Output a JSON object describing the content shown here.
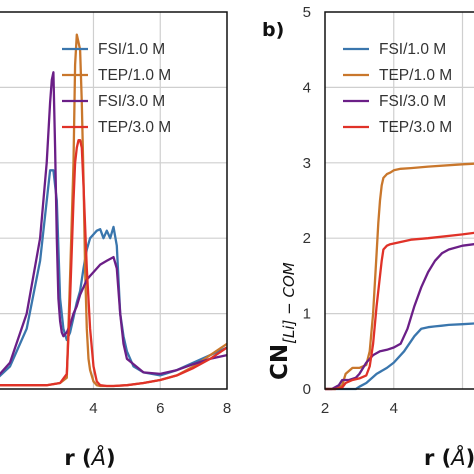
{
  "chart_data": [
    {
      "type": "line",
      "panel": "a",
      "title": "",
      "xlabel": "r",
      "xlabel_unit": "Å",
      "ylabel": "",
      "xlim": [
        0.9,
        8
      ],
      "ylim": [
        0,
        5.0
      ],
      "xticks": [
        4,
        6,
        8
      ],
      "yticks": [],
      "grid": true,
      "legend_position": "top-right",
      "series": [
        {
          "name": "FSI/1.0 M",
          "color": "#3a76ad",
          "x": [
            0.9,
            1.5,
            2.0,
            2.4,
            2.7,
            2.8,
            2.9,
            3.0,
            3.1,
            3.2,
            3.3,
            3.4,
            3.5,
            3.6,
            3.7,
            3.8,
            3.9,
            4.0,
            4.1,
            4.2,
            4.3,
            4.4,
            4.5,
            4.6,
            4.7,
            4.8,
            4.9,
            5.0,
            5.2,
            5.5,
            6.0,
            6.5,
            7.0,
            7.5,
            8.0
          ],
          "y": [
            0.05,
            0.3,
            0.8,
            1.7,
            2.9,
            2.9,
            2.5,
            1.2,
            0.8,
            0.65,
            0.75,
            0.95,
            1.15,
            1.3,
            1.6,
            1.85,
            2.0,
            2.05,
            2.1,
            2.12,
            2.0,
            2.1,
            2.0,
            2.15,
            1.9,
            1.0,
            0.7,
            0.5,
            0.3,
            0.22,
            0.18,
            0.25,
            0.35,
            0.45,
            0.55
          ]
        },
        {
          "name": "TEP/1.0 M",
          "color": "#c9772c",
          "x": [
            0.9,
            1.5,
            2.0,
            2.6,
            3.0,
            3.2,
            3.3,
            3.4,
            3.45,
            3.5,
            3.55,
            3.6,
            3.65,
            3.7,
            3.75,
            3.8,
            3.85,
            3.9,
            4.0,
            4.1,
            4.2,
            4.4,
            4.6,
            5.0,
            5.5,
            6.0,
            6.5,
            7.0,
            7.5,
            8.0
          ],
          "y": [
            0.05,
            0.05,
            0.05,
            0.05,
            0.08,
            0.15,
            1.5,
            3.0,
            4.3,
            4.7,
            4.6,
            4.5,
            3.8,
            2.8,
            1.6,
            0.8,
            0.4,
            0.25,
            0.1,
            0.05,
            0.04,
            0.04,
            0.04,
            0.05,
            0.08,
            0.12,
            0.18,
            0.3,
            0.45,
            0.6
          ]
        },
        {
          "name": "FSI/3.0 M",
          "color": "#6b1f87",
          "x": [
            0.9,
            1.5,
            2.0,
            2.4,
            2.6,
            2.7,
            2.75,
            2.8,
            2.85,
            2.9,
            2.95,
            3.0,
            3.05,
            3.1,
            3.2,
            3.3,
            3.4,
            3.5,
            3.6,
            3.7,
            3.8,
            3.9,
            4.0,
            4.2,
            4.4,
            4.6,
            4.7,
            4.8,
            4.9,
            5.0,
            5.5,
            6.0,
            6.5,
            7.0,
            7.5,
            8.0
          ],
          "y": [
            0.05,
            0.35,
            1.0,
            2.0,
            3.0,
            3.8,
            4.1,
            4.2,
            3.2,
            2.0,
            1.2,
            0.9,
            0.75,
            0.7,
            0.75,
            0.85,
            1.0,
            1.1,
            1.25,
            1.35,
            1.45,
            1.5,
            1.55,
            1.65,
            1.7,
            1.75,
            1.6,
            1.0,
            0.6,
            0.4,
            0.22,
            0.2,
            0.25,
            0.33,
            0.4,
            0.45
          ]
        },
        {
          "name": "TEP/3.0 M",
          "color": "#e03228",
          "x": [
            0.9,
            1.5,
            2.0,
            2.6,
            3.0,
            3.2,
            3.3,
            3.4,
            3.45,
            3.5,
            3.55,
            3.6,
            3.65,
            3.7,
            3.8,
            3.9,
            4.0,
            4.1,
            4.2,
            4.4,
            4.6,
            5.0,
            5.5,
            6.0,
            6.5,
            7.0,
            7.5,
            8.0
          ],
          "y": [
            0.05,
            0.05,
            0.05,
            0.05,
            0.08,
            0.2,
            1.2,
            2.5,
            3.0,
            3.2,
            3.3,
            3.3,
            3.2,
            2.7,
            1.6,
            0.8,
            0.3,
            0.1,
            0.05,
            0.04,
            0.04,
            0.05,
            0.08,
            0.12,
            0.18,
            0.28,
            0.4,
            0.55
          ]
        }
      ]
    },
    {
      "type": "line",
      "panel": "b",
      "panel_label": "b)",
      "title": "",
      "xlabel": "r",
      "xlabel_unit": "Å",
      "ylabel": "CN",
      "ylabel_subscript": "[Li] − COM",
      "xlim": [
        2,
        6.8
      ],
      "ylim": [
        0,
        5
      ],
      "xticks": [
        2,
        4
      ],
      "yticks": [
        0,
        1,
        2,
        3,
        4,
        5
      ],
      "grid": true,
      "legend_position": "top-right",
      "series": [
        {
          "name": "FSI/1.0 M",
          "color": "#3a76ad",
          "x": [
            2.0,
            2.5,
            2.9,
            3.0,
            3.2,
            3.5,
            3.8,
            4.0,
            4.3,
            4.6,
            4.8,
            5.0,
            5.2,
            5.4,
            5.6,
            6.0,
            6.8
          ],
          "y": [
            0.0,
            0.0,
            0.0,
            0.03,
            0.08,
            0.2,
            0.28,
            0.35,
            0.5,
            0.7,
            0.8,
            0.82,
            0.83,
            0.84,
            0.85,
            0.86,
            0.88
          ]
        },
        {
          "name": "TEP/1.0 M",
          "color": "#c9772c",
          "x": [
            2.0,
            2.3,
            2.5,
            2.6,
            2.8,
            3.0,
            3.2,
            3.3,
            3.4,
            3.5,
            3.55,
            3.6,
            3.65,
            3.7,
            3.8,
            3.9,
            4.0,
            4.2,
            4.5,
            5.0,
            6.0,
            6.8
          ],
          "y": [
            0.0,
            0.0,
            0.05,
            0.2,
            0.28,
            0.28,
            0.32,
            0.5,
            1.0,
            1.8,
            2.2,
            2.5,
            2.7,
            2.8,
            2.85,
            2.87,
            2.9,
            2.92,
            2.93,
            2.95,
            2.98,
            3.0
          ]
        },
        {
          "name": "FSI/3.0 M",
          "color": "#6b1f87",
          "x": [
            2.0,
            2.2,
            2.4,
            2.5,
            2.7,
            2.9,
            3.0,
            3.2,
            3.4,
            3.6,
            3.8,
            4.0,
            4.2,
            4.4,
            4.6,
            4.8,
            5.0,
            5.2,
            5.4,
            5.6,
            6.0,
            6.8
          ],
          "y": [
            0.0,
            0.0,
            0.05,
            0.12,
            0.12,
            0.15,
            0.2,
            0.35,
            0.45,
            0.5,
            0.52,
            0.55,
            0.6,
            0.8,
            1.1,
            1.35,
            1.55,
            1.7,
            1.8,
            1.85,
            1.9,
            1.95
          ]
        },
        {
          "name": "TEP/3.0 M",
          "color": "#e03228",
          "x": [
            2.0,
            2.3,
            2.5,
            2.6,
            2.8,
            3.0,
            3.2,
            3.3,
            3.4,
            3.5,
            3.6,
            3.65,
            3.7,
            3.8,
            3.9,
            4.0,
            4.2,
            4.5,
            5.0,
            6.0,
            6.8
          ],
          "y": [
            0.0,
            0.0,
            0.02,
            0.08,
            0.12,
            0.14,
            0.18,
            0.3,
            0.6,
            1.1,
            1.5,
            1.7,
            1.85,
            1.9,
            1.92,
            1.93,
            1.95,
            1.98,
            2.0,
            2.05,
            2.1
          ]
        }
      ]
    }
  ]
}
